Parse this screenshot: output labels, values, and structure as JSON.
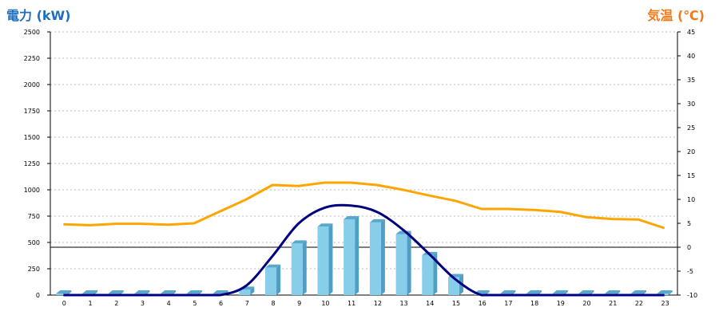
{
  "chart_data": {
    "type": "bar",
    "left_axis_title": "電力 (kW)",
    "right_axis_title": "気温 (℃)",
    "categories": [
      "0",
      "1",
      "2",
      "3",
      "4",
      "5",
      "6",
      "7",
      "8",
      "9",
      "10",
      "11",
      "12",
      "13",
      "14",
      "15",
      "16",
      "17",
      "18",
      "19",
      "20",
      "21",
      "22",
      "23"
    ],
    "y_left": {
      "min": 0,
      "max": 2500,
      "ticks": [
        0,
        250,
        500,
        750,
        1000,
        1250,
        1500,
        1750,
        2000,
        2250,
        2500
      ]
    },
    "y_right": {
      "min": -10,
      "max": 45,
      "ticks": [
        -10,
        -5,
        0,
        5,
        10,
        15,
        20,
        25,
        30,
        35,
        40,
        45
      ]
    },
    "grid": true,
    "series": [
      {
        "kind": "bar",
        "axis": "left",
        "color": "#87ceeb",
        "values": [
          0,
          0,
          0,
          0,
          0,
          0,
          0,
          50,
          260,
          490,
          650,
          720,
          690,
          580,
          380,
          170,
          0,
          0,
          0,
          0,
          0,
          0,
          0,
          0
        ]
      },
      {
        "kind": "line",
        "axis": "left",
        "color": "#000080",
        "values": [
          0,
          0,
          0,
          0,
          0,
          0,
          0,
          90,
          370,
          680,
          830,
          850,
          790,
          620,
          390,
          150,
          0,
          0,
          0,
          0,
          0,
          0,
          0,
          0
        ]
      },
      {
        "kind": "line",
        "axis": "right",
        "color": "#ffa500",
        "values": [
          4.8,
          4.6,
          4.9,
          4.9,
          4.7,
          5.0,
          7.5,
          10.0,
          13.0,
          12.8,
          13.5,
          13.5,
          13.0,
          12.0,
          10.8,
          9.7,
          8.0,
          8.0,
          7.8,
          7.4,
          6.3,
          5.9,
          5.8,
          4.0
        ]
      }
    ]
  }
}
